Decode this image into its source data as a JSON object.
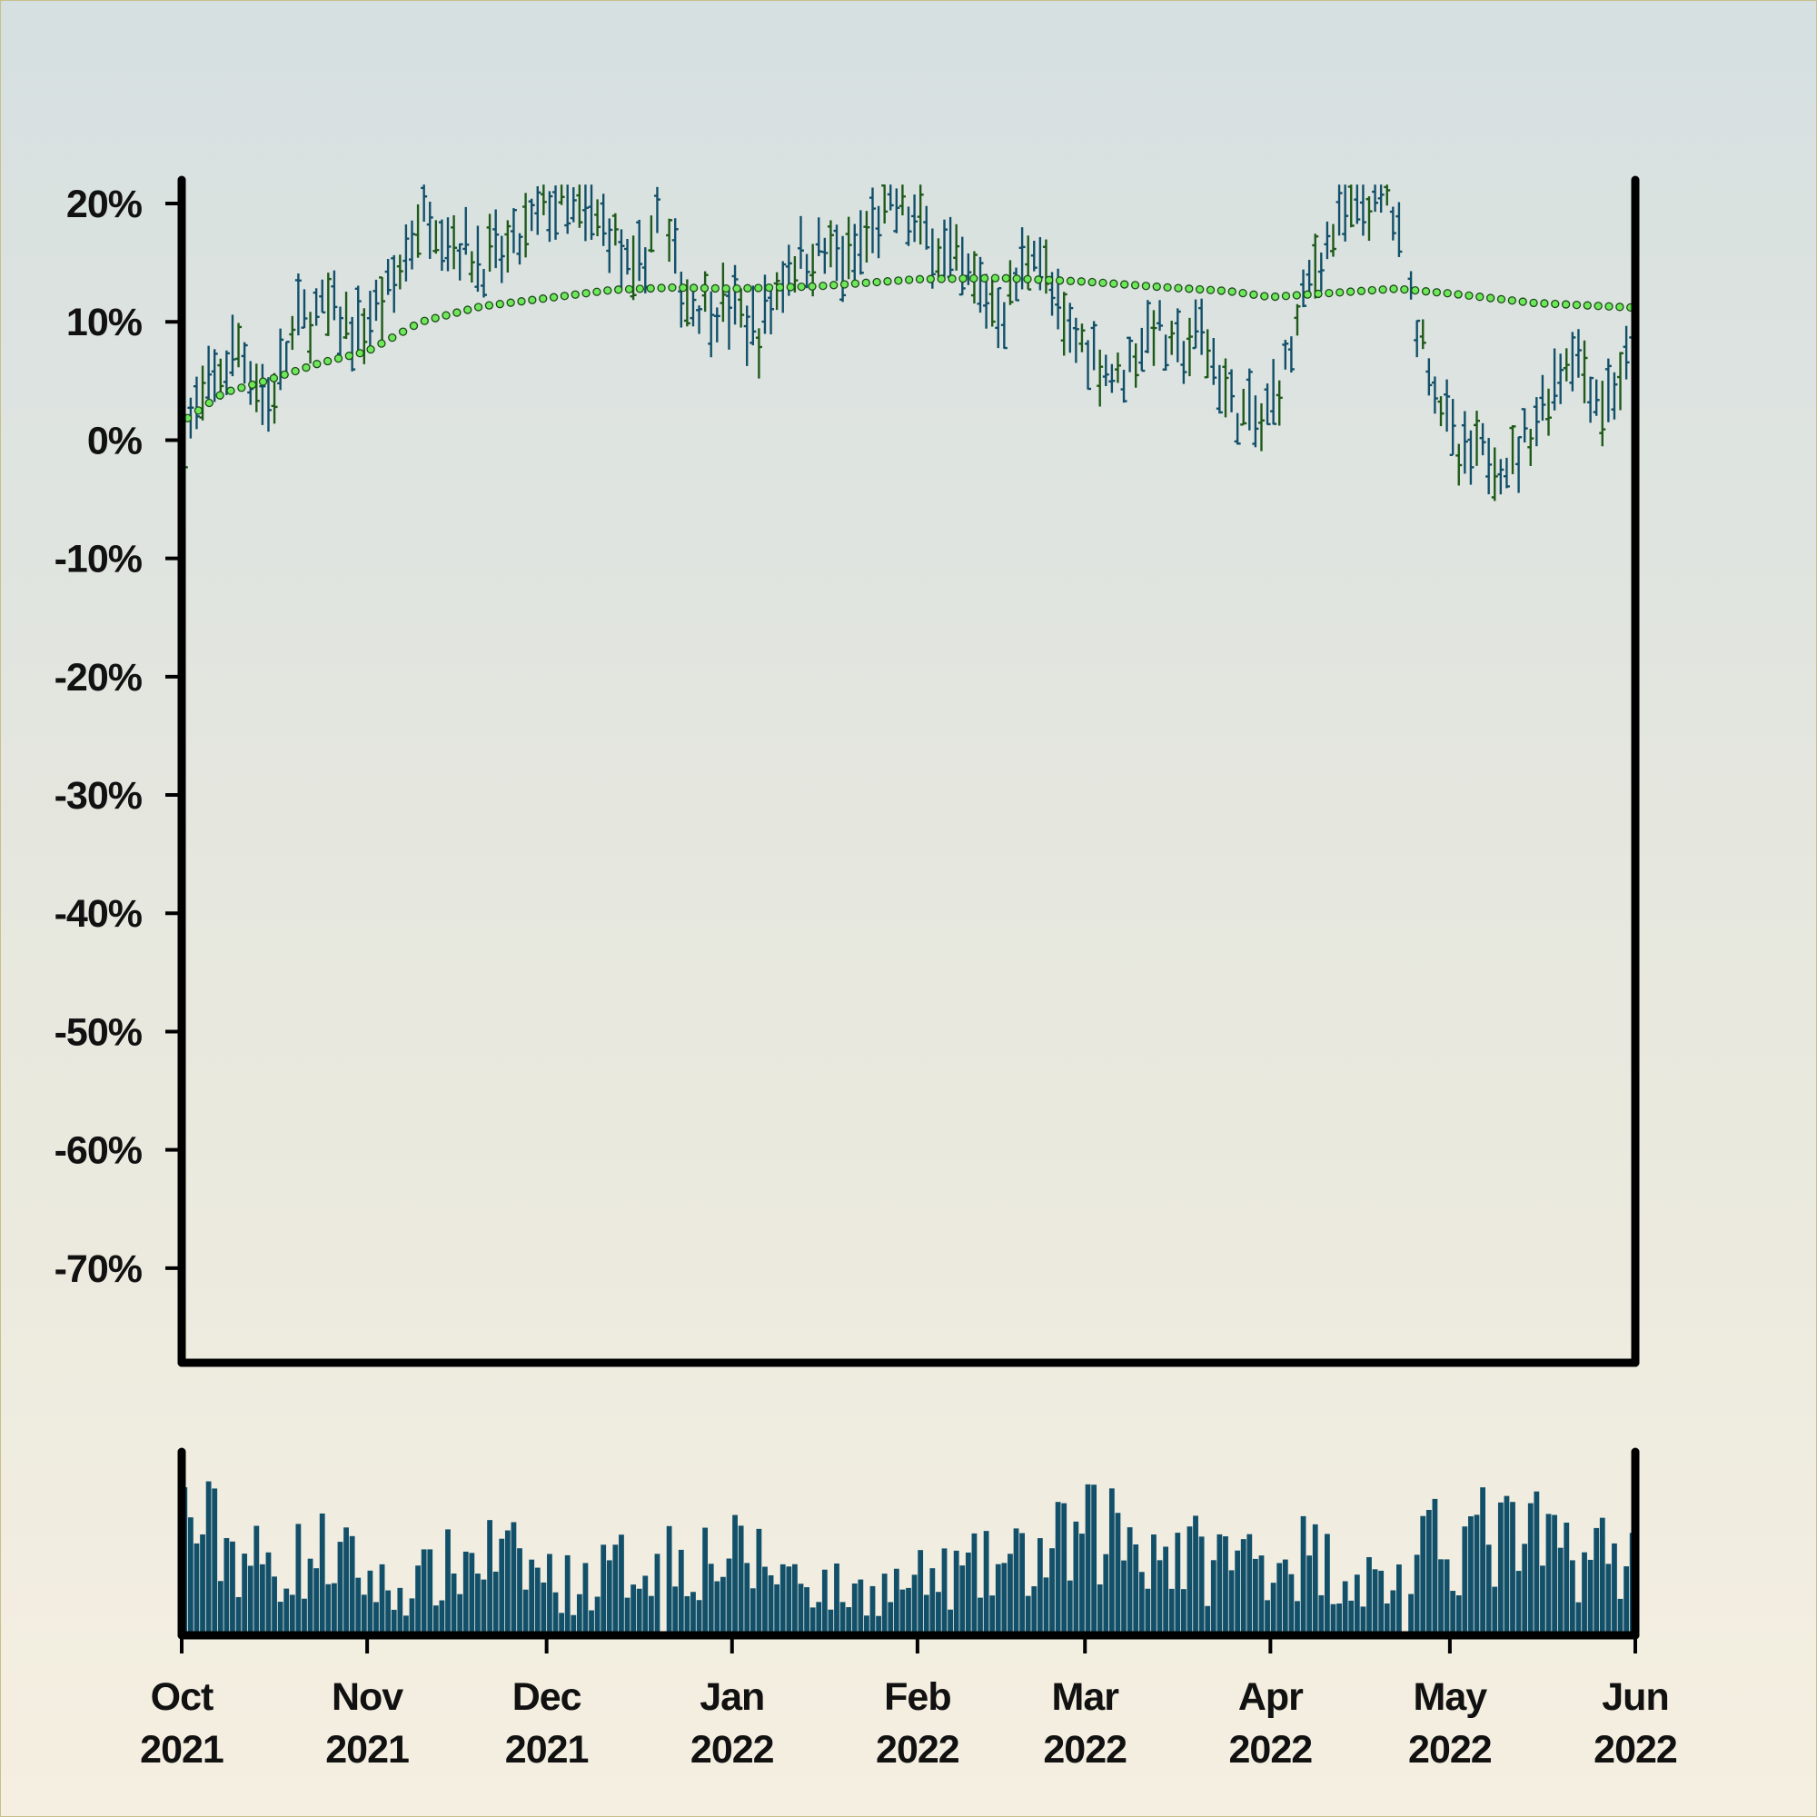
{
  "chart_data": {
    "type": "ohlc",
    "title": "",
    "xlabel": "",
    "ylabel": "",
    "date_range": [
      "2021-10-01",
      "2022-06-01"
    ],
    "ylim": [
      -78,
      22
    ],
    "y_ticks": [
      20,
      10,
      0,
      -10,
      -20,
      -30,
      -40,
      -50,
      -60,
      -70
    ],
    "y_tick_labels": [
      "20%",
      "10%",
      "0%",
      "-10%",
      "-20%",
      "-30%",
      "-40%",
      "-50%",
      "-60%",
      "-70%"
    ],
    "x_ticks": [
      "2021-10-01",
      "2021-11-01",
      "2021-12-01",
      "2022-01-01",
      "2022-02-01",
      "2022-03-01",
      "2022-04-01",
      "2022-05-01",
      "2022-06-01"
    ],
    "x_tick_labels": [
      [
        "Oct",
        "2021"
      ],
      [
        "Nov",
        "2021"
      ],
      [
        "Dec",
        "2021"
      ],
      [
        "Jan",
        "2022"
      ],
      [
        "Feb",
        "2022"
      ],
      [
        "Mar",
        "2022"
      ],
      [
        "Apr",
        "2022"
      ],
      [
        "May",
        "2022"
      ],
      [
        "Jun",
        "2022"
      ]
    ],
    "price_anchors": [
      [
        "2021-10-01",
        1
      ],
      [
        "2021-10-05",
        4
      ],
      [
        "2021-10-10",
        8
      ],
      [
        "2021-10-15",
        3
      ],
      [
        "2021-10-20",
        10
      ],
      [
        "2021-10-25",
        11
      ],
      [
        "2021-10-30",
        9
      ],
      [
        "2021-11-05",
        13
      ],
      [
        "2021-11-10",
        20
      ],
      [
        "2021-11-15",
        17
      ],
      [
        "2021-11-20",
        15
      ],
      [
        "2021-11-25",
        16
      ],
      [
        "2021-12-01",
        20
      ],
      [
        "2021-12-06",
        19
      ],
      [
        "2021-12-11",
        18
      ],
      [
        "2021-12-15",
        13
      ],
      [
        "2021-12-19",
        19
      ],
      [
        "2021-12-24",
        12
      ],
      [
        "2022-01-01",
        11
      ],
      [
        "2022-01-05",
        9
      ],
      [
        "2022-01-10",
        15
      ],
      [
        "2022-01-15",
        16
      ],
      [
        "2022-01-20",
        15
      ],
      [
        "2022-01-27",
        20
      ],
      [
        "2022-02-03",
        17
      ],
      [
        "2022-02-08",
        14
      ],
      [
        "2022-02-15",
        11
      ],
      [
        "2022-02-20",
        17
      ],
      [
        "2022-02-25",
        9
      ],
      [
        "2022-03-01",
        8
      ],
      [
        "2022-03-06",
        5
      ],
      [
        "2022-03-12",
        10
      ],
      [
        "2022-03-15",
        7
      ],
      [
        "2022-03-20",
        9
      ],
      [
        "2022-03-25",
        3
      ],
      [
        "2022-03-30",
        1
      ],
      [
        "2022-04-03",
        6
      ],
      [
        "2022-04-08",
        15
      ],
      [
        "2022-04-13",
        19
      ],
      [
        "2022-04-20",
        21
      ],
      [
        "2022-04-24",
        12
      ],
      [
        "2022-04-28",
        5
      ],
      [
        "2022-05-02",
        -2
      ],
      [
        "2022-05-07",
        -1
      ],
      [
        "2022-05-11",
        -2
      ],
      [
        "2022-05-16",
        3
      ],
      [
        "2022-05-21",
        8
      ],
      [
        "2022-05-26",
        3
      ],
      [
        "2022-05-31",
        7
      ]
    ],
    "gaps": [
      [
        "2021-12-20",
        "2021-12-20"
      ],
      [
        "2022-04-23",
        "2022-04-23"
      ]
    ],
    "moving_average": [
      [
        "2021-10-01",
        1.5
      ],
      [
        "2021-10-08",
        4
      ],
      [
        "2021-10-15",
        5
      ],
      [
        "2021-10-24",
        6.5
      ],
      [
        "2021-11-01",
        7.5
      ],
      [
        "2021-11-10",
        10
      ],
      [
        "2021-11-20",
        11.3
      ],
      [
        "2021-12-01",
        12
      ],
      [
        "2021-12-12",
        12.7
      ],
      [
        "2021-12-22",
        12.9
      ],
      [
        "2022-01-01",
        12.8
      ],
      [
        "2022-01-15",
        13
      ],
      [
        "2022-02-01",
        13.6
      ],
      [
        "2022-02-15",
        13.7
      ],
      [
        "2022-03-01",
        13.4
      ],
      [
        "2022-03-15",
        12.9
      ],
      [
        "2022-03-25",
        12.6
      ],
      [
        "2022-04-01",
        12.1
      ],
      [
        "2022-04-10",
        12.4
      ],
      [
        "2022-04-22",
        12.8
      ],
      [
        "2022-05-01",
        12.4
      ],
      [
        "2022-05-15",
        11.6
      ],
      [
        "2022-06-01",
        11.2
      ]
    ],
    "volume_profile": [
      [
        "2021-10-01",
        0.7
      ],
      [
        "2021-10-15",
        0.4
      ],
      [
        "2021-10-25",
        0.5
      ],
      [
        "2021-11-05",
        0.25
      ],
      [
        "2021-11-20",
        0.5
      ],
      [
        "2021-12-05",
        0.3
      ],
      [
        "2021-12-20",
        0.5
      ],
      [
        "2022-01-05",
        0.45
      ],
      [
        "2022-01-20",
        0.25
      ],
      [
        "2022-02-05",
        0.35
      ],
      [
        "2022-02-20",
        0.45
      ],
      [
        "2022-03-05",
        0.65
      ],
      [
        "2022-03-20",
        0.45
      ],
      [
        "2022-04-05",
        0.5
      ],
      [
        "2022-04-20",
        0.3
      ],
      [
        "2022-05-01",
        0.6
      ],
      [
        "2022-05-15",
        0.55
      ],
      [
        "2022-06-01",
        0.45
      ]
    ],
    "series_color": "#12506a",
    "alt_bar_color": "#1f5a1a",
    "ma_color": "#6ee85a",
    "axis_color": "#000000",
    "grid": false,
    "legend": "none"
  }
}
